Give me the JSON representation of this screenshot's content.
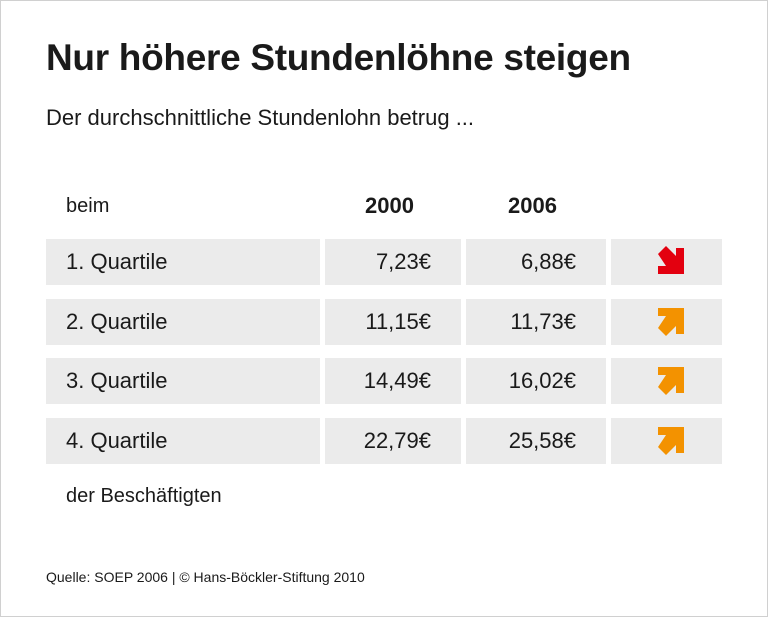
{
  "title": "Nur höhere Stundenlöhne steigen",
  "subtitle": "Der durchschnittliche Stundenlohn betrug ...",
  "header": {
    "label": "beim",
    "year1": "2000",
    "year2": "2006"
  },
  "rows": [
    {
      "label": "1. Quartile",
      "v2000": "7,23€",
      "v2006": "6,88€",
      "trend": "down",
      "icon": "arrow-down-right-icon",
      "color": "#e3000f"
    },
    {
      "label": "2. Quartile",
      "v2000": "11,15€",
      "v2006": "11,73€",
      "trend": "up",
      "icon": "arrow-up-right-icon",
      "color": "#f39200"
    },
    {
      "label": "3. Quartile",
      "v2000": "14,49€",
      "v2006": "16,02€",
      "trend": "up",
      "icon": "arrow-up-right-icon",
      "color": "#f39200"
    },
    {
      "label": "4. Quartile",
      "v2000": "22,79€",
      "v2006": "25,58€",
      "trend": "up",
      "icon": "arrow-up-right-icon",
      "color": "#f39200"
    }
  ],
  "footer": "der Beschäftigten",
  "source": "Quelle: SOEP 2006 | © Hans-Böckler-Stiftung 2010"
}
